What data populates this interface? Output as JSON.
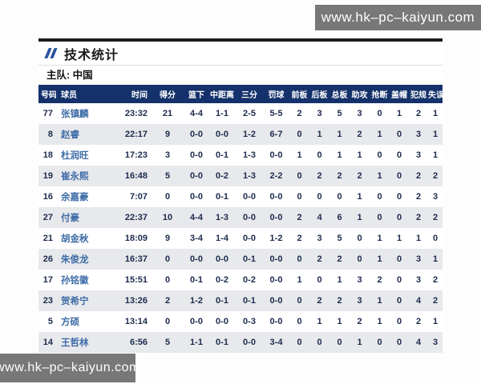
{
  "watermarks": {
    "top": "www.hk–pc–kaiyun.com",
    "bottom": "www.hk–pc–kaiyun.com"
  },
  "panel": {
    "title": "技术统计",
    "team_label": "主队: 中国"
  },
  "table": {
    "columns": [
      "号码",
      "球员",
      "时间",
      "得分",
      "篮下",
      "中距离",
      "三分",
      "罚球",
      "前板",
      "后板",
      "总板",
      "助攻",
      "抢断",
      "盖帽",
      "犯规",
      "失误"
    ],
    "rows": [
      [
        "77",
        "张镇麟",
        "23:32",
        "21",
        "4-4",
        "1-1",
        "2-5",
        "5-5",
        "2",
        "3",
        "5",
        "3",
        "0",
        "1",
        "2",
        "1"
      ],
      [
        "8",
        "赵睿",
        "22:17",
        "9",
        "0-0",
        "0-0",
        "1-2",
        "6-7",
        "0",
        "1",
        "1",
        "2",
        "1",
        "0",
        "3",
        "1"
      ],
      [
        "18",
        "杜润旺",
        "17:23",
        "3",
        "0-0",
        "0-1",
        "1-3",
        "0-0",
        "1",
        "0",
        "1",
        "1",
        "0",
        "0",
        "3",
        "1"
      ],
      [
        "19",
        "崔永熙",
        "16:48",
        "5",
        "0-0",
        "0-2",
        "1-3",
        "2-2",
        "0",
        "2",
        "2",
        "2",
        "1",
        "0",
        "2",
        "2"
      ],
      [
        "16",
        "余嘉豪",
        "7:07",
        "0",
        "0-0",
        "0-1",
        "0-0",
        "0-0",
        "0",
        "0",
        "0",
        "1",
        "0",
        "0",
        "2",
        "3"
      ],
      [
        "27",
        "付豪",
        "22:37",
        "10",
        "4-4",
        "1-3",
        "0-0",
        "0-0",
        "2",
        "4",
        "6",
        "1",
        "0",
        "0",
        "2",
        "2"
      ],
      [
        "21",
        "胡金秋",
        "18:09",
        "9",
        "3-4",
        "1-4",
        "0-0",
        "1-2",
        "2",
        "3",
        "5",
        "0",
        "1",
        "1",
        "1",
        "0"
      ],
      [
        "26",
        "朱俊龙",
        "16:37",
        "0",
        "0-0",
        "0-0",
        "0-1",
        "0-0",
        "0",
        "2",
        "2",
        "0",
        "1",
        "0",
        "3",
        "1"
      ],
      [
        "17",
        "孙铭徽",
        "15:51",
        "0",
        "0-1",
        "0-2",
        "0-2",
        "0-0",
        "1",
        "0",
        "1",
        "3",
        "2",
        "0",
        "3",
        "2"
      ],
      [
        "23",
        "贺希宁",
        "13:26",
        "2",
        "1-2",
        "0-1",
        "0-1",
        "0-0",
        "0",
        "2",
        "2",
        "3",
        "1",
        "0",
        "4",
        "2"
      ],
      [
        "5",
        "方硕",
        "13:14",
        "0",
        "0-0",
        "0-0",
        "0-3",
        "0-0",
        "0",
        "1",
        "1",
        "2",
        "1",
        "0",
        "2",
        "1"
      ],
      [
        "14",
        "王哲林",
        "6:56",
        "5",
        "1-1",
        "0-1",
        "0-0",
        "3-4",
        "0",
        "0",
        "0",
        "1",
        "0",
        "0",
        "4",
        "3"
      ]
    ]
  },
  "colors": {
    "header_navy": "#14316b",
    "accent_blue": "#2b52a0",
    "player_blue": "#3e6ca7",
    "row_alt": "#e8e9ec",
    "watermark_bg": "#787878"
  }
}
